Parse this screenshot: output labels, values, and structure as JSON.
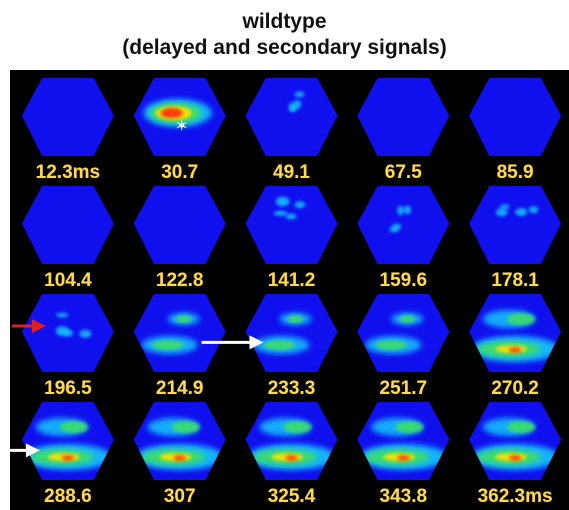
{
  "title": {
    "line1": "wildtype",
    "line2": "(delayed and secondary signals)"
  },
  "colors": {
    "background": "#000000",
    "hexagon_fill": "#1010ee",
    "label_color": "#ffd94a",
    "red_arrow": "#e0201a",
    "white_arrow": "#ffffff",
    "heat_low": "#18c8ff",
    "heat_mid": "#40e060",
    "heat_high": "#ffe000",
    "heat_peak": "#ff3010"
  },
  "frames": [
    {
      "label": "12.3ms",
      "activity": "none"
    },
    {
      "label": "30.7",
      "activity": "strong-center",
      "marker": "white-star"
    },
    {
      "label": "49.1",
      "activity": "faint"
    },
    {
      "label": "67.5",
      "activity": "none"
    },
    {
      "label": "85.9",
      "activity": "none"
    },
    {
      "label": "104.4",
      "activity": "none"
    },
    {
      "label": "122.8",
      "activity": "none"
    },
    {
      "label": "141.2",
      "activity": "faint"
    },
    {
      "label": "159.6",
      "activity": "faint"
    },
    {
      "label": "178.1",
      "activity": "faint"
    },
    {
      "label": "196.5",
      "activity": "faint",
      "marker": "red-arrow"
    },
    {
      "label": "214.9",
      "activity": "moderate"
    },
    {
      "label": "233.3",
      "activity": "moderate",
      "marker": "white-arrow"
    },
    {
      "label": "251.7",
      "activity": "moderate"
    },
    {
      "label": "270.2",
      "activity": "strong"
    },
    {
      "label": "288.6",
      "activity": "strong",
      "marker": "white-arrow"
    },
    {
      "label": "307",
      "activity": "strong"
    },
    {
      "label": "325.4",
      "activity": "strong"
    },
    {
      "label": "343.8",
      "activity": "strong"
    },
    {
      "label": "362.3ms",
      "activity": "strong"
    }
  ]
}
